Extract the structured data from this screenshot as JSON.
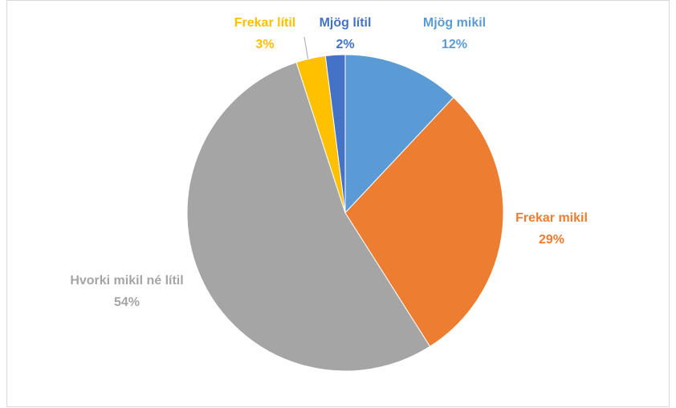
{
  "chart_data": {
    "type": "pie",
    "categories": [
      "Mjög mikil",
      "Frekar mikil",
      "Hvorki mikil né lítil",
      "Frekar lítil",
      "Mjög lítil"
    ],
    "values": [
      12,
      29,
      54,
      3,
      2
    ],
    "value_labels": [
      "12%",
      "29%",
      "54%",
      "3%",
      "2%"
    ],
    "colors": [
      "#5b9bd5",
      "#ed7d31",
      "#a5a5a5",
      "#ffc000",
      "#4472c4"
    ]
  }
}
